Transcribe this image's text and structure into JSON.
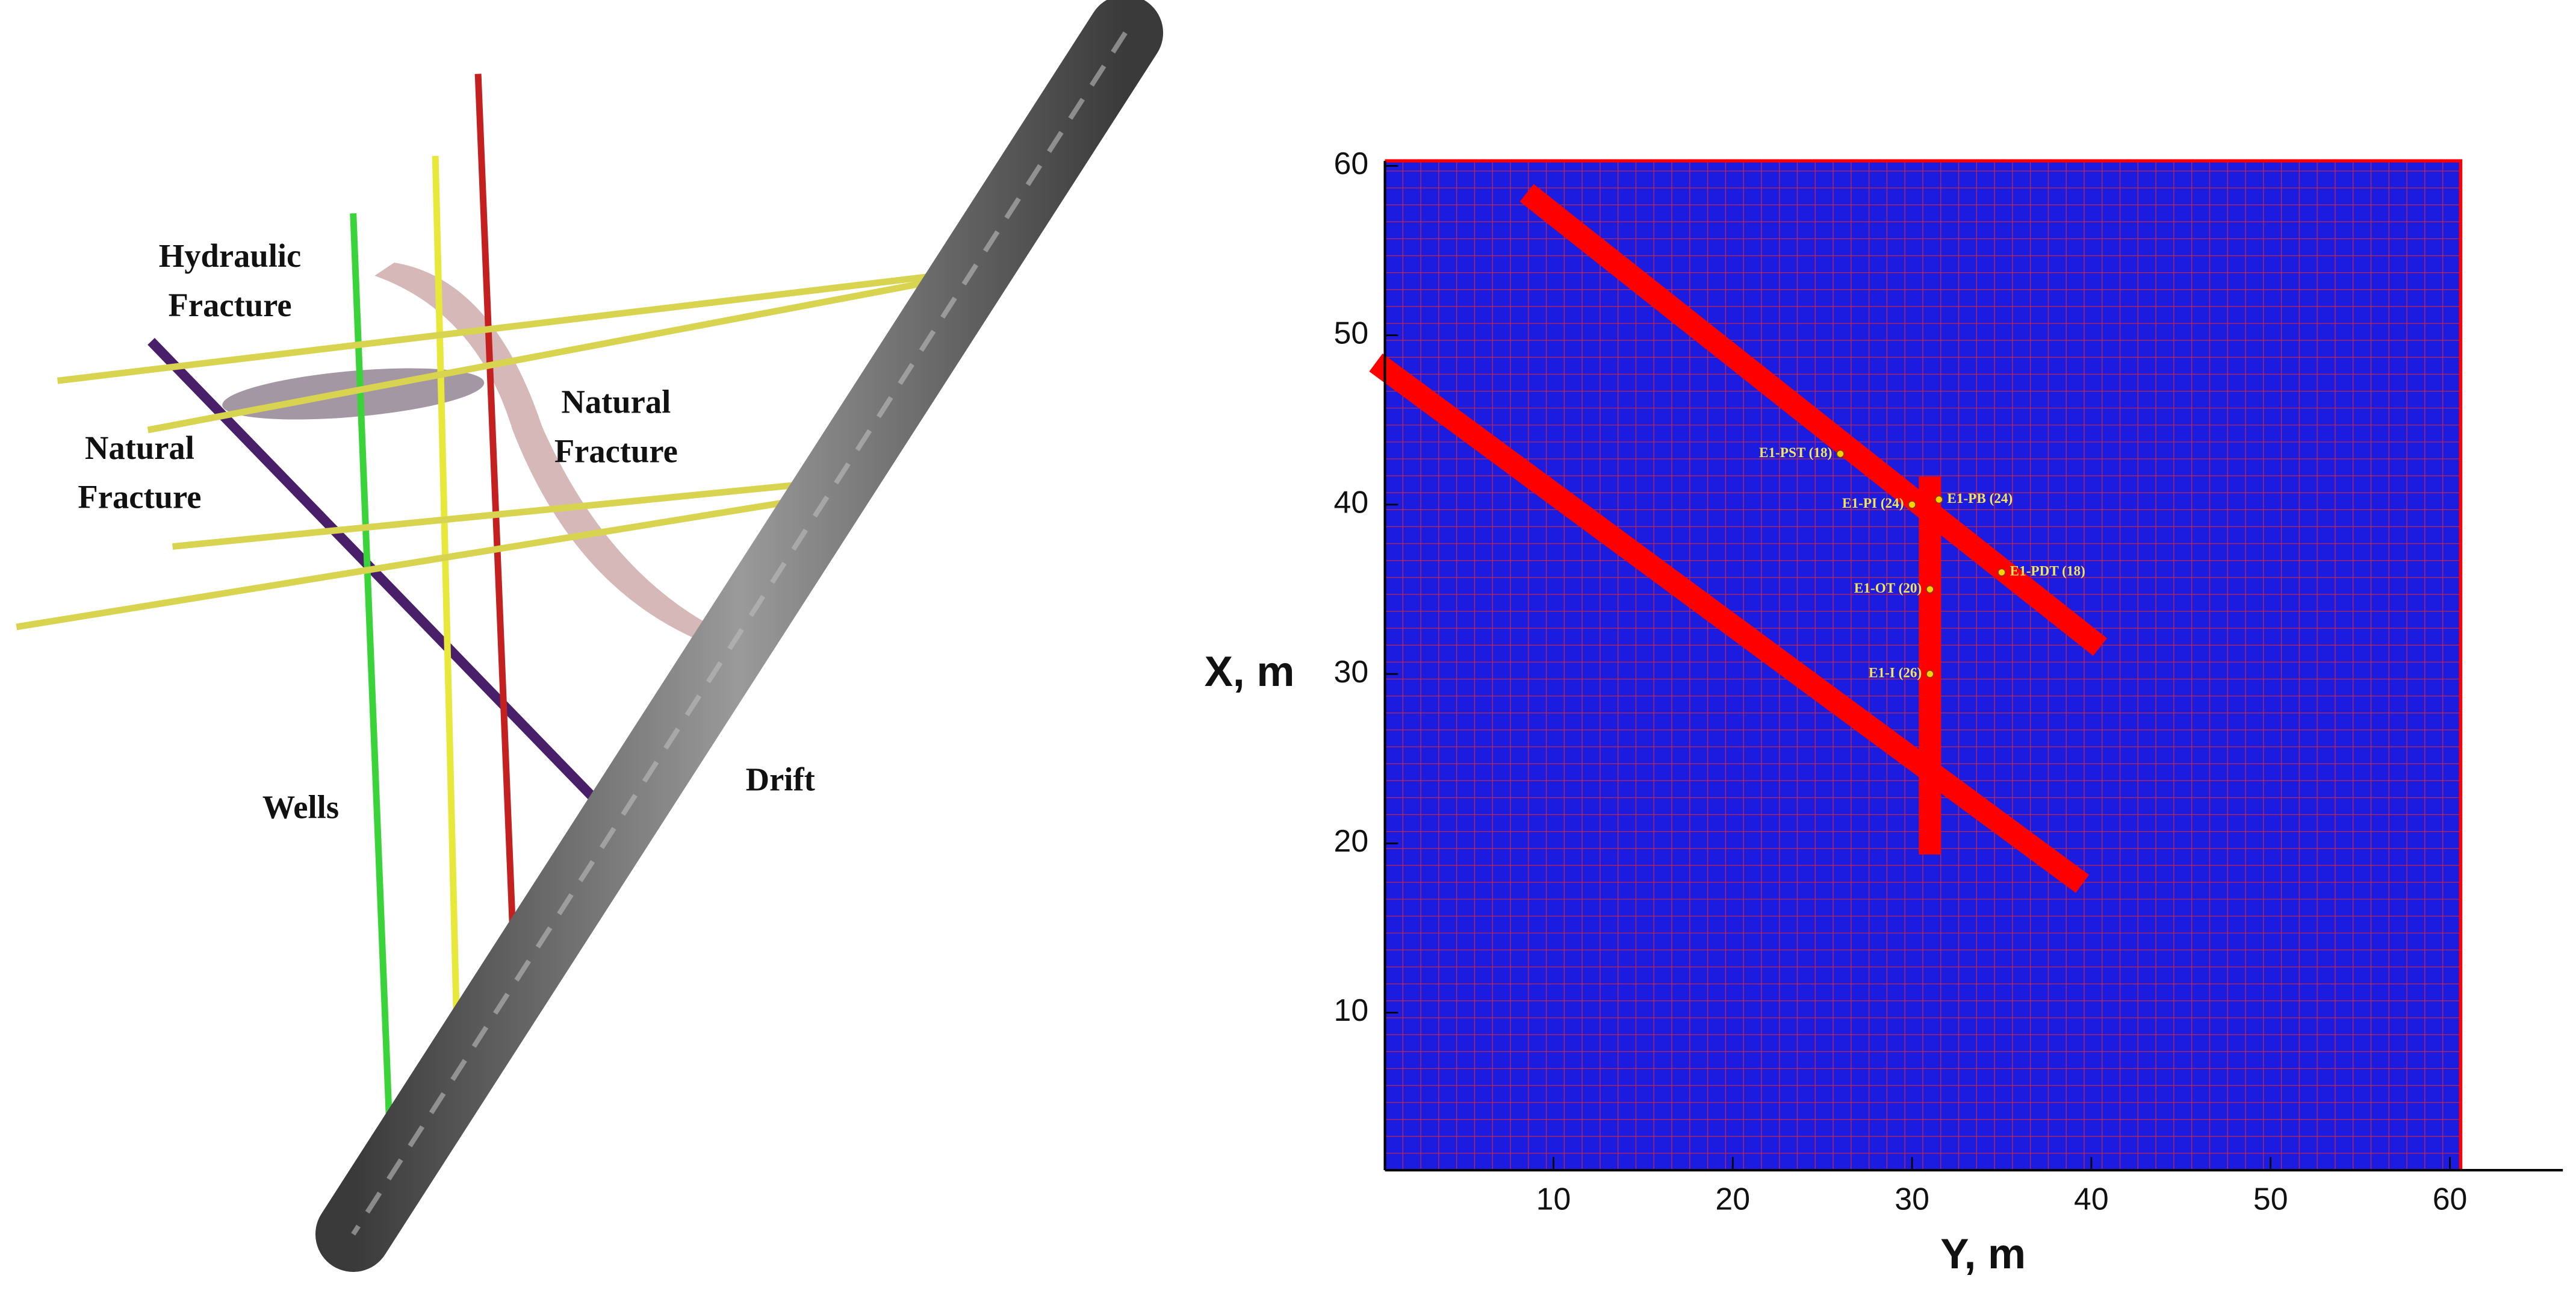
{
  "diagram": {
    "labels": [
      {
        "lines": [
          "Hydraulic",
          "Fracture"
        ]
      },
      {
        "lines": [
          "Natural",
          "Fracture"
        ]
      },
      {
        "lines": [
          "Natural",
          "Fracture"
        ]
      },
      {
        "lines": [
          "Wells"
        ]
      },
      {
        "lines": [
          "Drift"
        ]
      }
    ]
  },
  "chart_data": {
    "type": "mesh",
    "xlabel": "Y, m",
    "ylabel": "X, m",
    "xlim": [
      0.6,
      66.3
    ],
    "ylim": [
      0.7,
      60.3
    ],
    "xticks": [
      10,
      20,
      30,
      40,
      50,
      60
    ],
    "yticks": [
      10,
      20,
      30,
      40,
      50,
      60
    ],
    "mesh": {
      "xrange": [
        0.6,
        60.6
      ],
      "yrange": [
        0.7,
        60.3
      ],
      "cell": 1,
      "color": "#1c1ce0",
      "line_color": "#d82a3a"
    },
    "features": {
      "color": "#ff0000",
      "paths": [
        {
          "x": [
            9,
            40
          ],
          "y": [
            58,
            32
          ]
        },
        {
          "x": [
            0.6,
            39
          ],
          "y": [
            48,
            18
          ]
        },
        {
          "x": [
            31,
            31
          ],
          "y": [
            20,
            41
          ]
        }
      ]
    },
    "wells": [
      {
        "label": "E1-PST (18)",
        "x": 26,
        "y": 43
      },
      {
        "label": "E1-PI (24)",
        "x": 30,
        "y": 40
      },
      {
        "label": "E1-PB (24)",
        "x": 31.5,
        "y": 40.3
      },
      {
        "label": "E1-OT (20)",
        "x": 31,
        "y": 35
      },
      {
        "label": "E1-PDT (18)",
        "x": 35,
        "y": 36
      },
      {
        "label": "E1-I (26)",
        "x": 31,
        "y": 30
      }
    ]
  }
}
